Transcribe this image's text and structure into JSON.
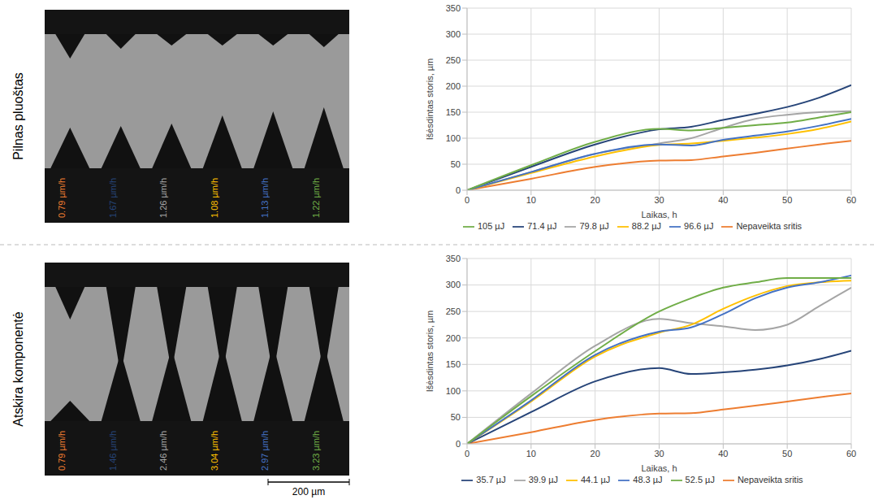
{
  "images": [
    {
      "row_label": "Pilnas pluoštas",
      "rates": [
        {
          "label": "0.79 µm/h",
          "color": "#ED7D31"
        },
        {
          "label": "1.67 µm/h",
          "color": "#264478"
        },
        {
          "label": "1.26 µm/h",
          "color": "#A5A5A5"
        },
        {
          "label": "1.08 µm/h",
          "color": "#FFC000"
        },
        {
          "label": "1.13 µm/h",
          "color": "#4472C4"
        },
        {
          "label": "1.22 µm/h",
          "color": "#70AD47"
        }
      ]
    },
    {
      "row_label": "Atskira komponentė",
      "rates": [
        {
          "label": "0.79 µm/h",
          "color": "#ED7D31"
        },
        {
          "label": "1.46 µm/h",
          "color": "#264478"
        },
        {
          "label": "2.46 µm/h",
          "color": "#A5A5A5"
        },
        {
          "label": "3.04 µm/h",
          "color": "#FFC000"
        },
        {
          "label": "2.97 µm/h",
          "color": "#4472C4"
        },
        {
          "label": "3.23 µm/h",
          "color": "#70AD47"
        }
      ]
    }
  ],
  "scale_bar": "200 µm",
  "chart_data": [
    {
      "type": "line",
      "x_label": "Laikas, h",
      "y_label": "Išėsdintas storis, µm",
      "x": [
        0,
        10,
        20,
        30,
        35,
        40,
        45,
        50,
        55,
        60
      ],
      "xlim": [
        0,
        60
      ],
      "xticks": [
        0,
        10,
        20,
        30,
        40,
        50,
        60
      ],
      "ylim": [
        0,
        350
      ],
      "yticks": [
        0,
        50,
        100,
        150,
        200,
        250,
        300,
        350
      ],
      "grid": true,
      "legend": "bottom",
      "series": [
        {
          "name": "Nepaveikta sritis",
          "color": "#ED7D31",
          "values": [
            0,
            22,
            45,
            57,
            58,
            65,
            72,
            80,
            88,
            95
          ]
        },
        {
          "name": "71.4 µJ",
          "color": "#264478",
          "values": [
            0,
            45,
            88,
            117,
            122,
            135,
            147,
            160,
            178,
            202
          ]
        },
        {
          "name": "79.8 µJ",
          "color": "#A5A5A5",
          "values": [
            0,
            35,
            70,
            90,
            100,
            120,
            137,
            145,
            150,
            152
          ]
        },
        {
          "name": "88.2 µJ",
          "color": "#FFC000",
          "values": [
            0,
            33,
            65,
            87,
            90,
            95,
            101,
            108,
            118,
            132
          ]
        },
        {
          "name": "96.6 µJ",
          "color": "#4472C4",
          "values": [
            0,
            35,
            70,
            88,
            86,
            97,
            105,
            113,
            124,
            137
          ]
        },
        {
          "name": "105 µJ",
          "color": "#70AD47",
          "values": [
            0,
            48,
            93,
            118,
            115,
            120,
            125,
            130,
            140,
            150
          ]
        }
      ]
    },
    {
      "type": "line",
      "x_label": "Laikas, h",
      "y_label": "Išėsdintas storis, µm",
      "x": [
        0,
        10,
        20,
        30,
        35,
        40,
        45,
        50,
        55,
        60
      ],
      "xlim": [
        0,
        60
      ],
      "xticks": [
        0,
        10,
        20,
        30,
        40,
        50,
        60
      ],
      "ylim": [
        0,
        350
      ],
      "yticks": [
        0,
        50,
        100,
        150,
        200,
        250,
        300,
        350
      ],
      "grid": true,
      "legend": "bottom",
      "series": [
        {
          "name": "Nepaveikta sritis",
          "color": "#ED7D31",
          "values": [
            0,
            22,
            45,
            57,
            58,
            65,
            72,
            80,
            88,
            95
          ]
        },
        {
          "name": "35.7 µJ",
          "color": "#264478",
          "values": [
            0,
            60,
            118,
            143,
            132,
            135,
            140,
            148,
            160,
            176
          ]
        },
        {
          "name": "39.9 µJ",
          "color": "#A5A5A5",
          "values": [
            0,
            95,
            185,
            236,
            228,
            222,
            215,
            225,
            260,
            295
          ]
        },
        {
          "name": "44.1 µJ",
          "color": "#FFC000",
          "values": [
            0,
            80,
            165,
            210,
            225,
            255,
            280,
            298,
            305,
            308
          ]
        },
        {
          "name": "48.3 µJ",
          "color": "#4472C4",
          "values": [
            0,
            82,
            168,
            212,
            220,
            245,
            275,
            295,
            305,
            318
          ]
        },
        {
          "name": "52.5 µJ",
          "color": "#70AD47",
          "values": [
            0,
            90,
            175,
            250,
            275,
            295,
            305,
            313,
            313,
            313
          ]
        }
      ]
    }
  ]
}
